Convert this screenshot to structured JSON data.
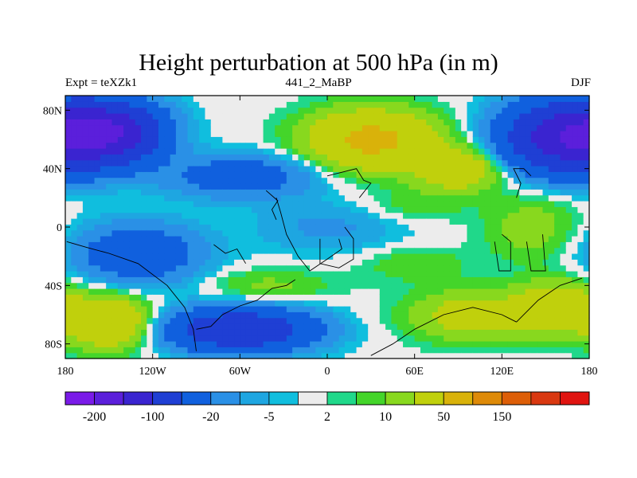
{
  "chart_data": {
    "type": "heatmap",
    "title": "Height perturbation at 500 hPa (in m)",
    "left_string": "Expt = teXZk1",
    "center_string": "441_2_MaBP",
    "right_string": "DJF",
    "xlim": [
      -180,
      180
    ],
    "ylim": [
      -90,
      90
    ],
    "x_ticks": [
      -180,
      -120,
      -60,
      0,
      60,
      120,
      180
    ],
    "x_tick_labels": [
      "180",
      "120W",
      "60W",
      "0",
      "60E",
      "120E",
      "180"
    ],
    "y_ticks": [
      80,
      40,
      0,
      -40,
      -80
    ],
    "y_tick_labels": [
      "80N",
      "40N",
      "0",
      "40S",
      "80S"
    ],
    "colorbar": {
      "levels": [
        -200,
        -150,
        -100,
        -50,
        -20,
        -10,
        -5,
        -2,
        2,
        5,
        10,
        20,
        50,
        100,
        150,
        200
      ],
      "labeled_levels": [
        -200,
        -100,
        -20,
        -5,
        2,
        10,
        50,
        150
      ],
      "colors": [
        "#7a1be8",
        "#5b1fdb",
        "#3a24d0",
        "#1f3fd4",
        "#1060de",
        "#2a90e6",
        "#1ea6e1",
        "#10bede",
        "#ececec",
        "#20d88a",
        "#44d52a",
        "#88d81e",
        "#c0d00c",
        "#d9b20a",
        "#de8a08",
        "#dd5e07",
        "#d93810",
        "#e01410"
      ]
    },
    "features": [
      {
        "lon": -150,
        "lat": 65,
        "value": -140,
        "spread_lon": 24,
        "spread_lat": 14
      },
      {
        "lon": 165,
        "lat": 62,
        "value": -140,
        "spread_lon": 28,
        "spread_lat": 16
      },
      {
        "lon": -60,
        "lat": -70,
        "value": -90,
        "spread_lon": 34,
        "spread_lat": 10
      },
      {
        "lon": -130,
        "lat": -18,
        "value": -40,
        "spread_lon": 30,
        "spread_lat": 14
      },
      {
        "lon": -60,
        "lat": 35,
        "value": -35,
        "spread_lon": 35,
        "spread_lat": 10
      },
      {
        "lon": 0,
        "lat": 0,
        "value": -12,
        "spread_lon": 35,
        "spread_lat": 12
      },
      {
        "lon": 30,
        "lat": 60,
        "value": 60,
        "spread_lon": 30,
        "spread_lat": 14
      },
      {
        "lon": -150,
        "lat": -65,
        "value": 50,
        "spread_lon": 20,
        "spread_lat": 12
      },
      {
        "lon": 100,
        "lat": -60,
        "value": 30,
        "spread_lon": 30,
        "spread_lat": 12
      },
      {
        "lon": 160,
        "lat": -55,
        "value": 40,
        "spread_lon": 20,
        "spread_lat": 12
      },
      {
        "lon": 90,
        "lat": 40,
        "value": 40,
        "spread_lon": 20,
        "spread_lat": 10
      },
      {
        "lon": 140,
        "lat": 0,
        "value": 15,
        "spread_lon": 22,
        "spread_lat": 16
      },
      {
        "lon": -40,
        "lat": -40,
        "value": 12,
        "spread_lon": 30,
        "spread_lat": 8
      },
      {
        "lon": 60,
        "lat": -25,
        "value": 10,
        "spread_lon": 25,
        "spread_lat": 8
      },
      {
        "lon": 60,
        "lat": 15,
        "value": 8,
        "spread_lon": 25,
        "spread_lat": 8
      }
    ]
  }
}
